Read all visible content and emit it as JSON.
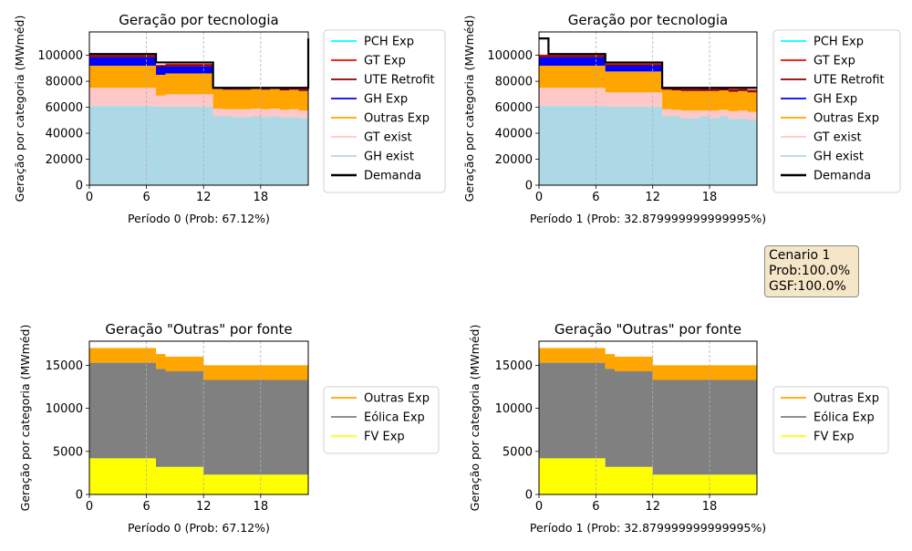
{
  "scenario_box": {
    "name": "Cenario 1",
    "prob": "Prob:100.0%",
    "gsf": "GSF:100.0%"
  },
  "chart_data": [
    {
      "type": "area",
      "title": "Geração por tecnologia",
      "xlabel": "Período 0 (Prob: 67.12%)",
      "ylabel": "Geração por categoria (MWméd)",
      "xlim": [
        0,
        23
      ],
      "ylim": [
        0,
        118000
      ],
      "xticks": [
        0,
        6,
        12,
        18
      ],
      "yticks": [
        0,
        20000,
        40000,
        60000,
        80000,
        100000
      ],
      "grid": "x-dashed",
      "legend_placement": "outside-right",
      "x": [
        0,
        1,
        2,
        3,
        4,
        5,
        6,
        7,
        8,
        9,
        10,
        11,
        12,
        13,
        14,
        15,
        16,
        17,
        18,
        19,
        20,
        21,
        22,
        23
      ],
      "series": [
        {
          "name": "GH exist",
          "color": "#add8e6",
          "values": [
            61000,
            61000,
            61000,
            61000,
            61000,
            61000,
            61000,
            60500,
            60500,
            60500,
            60500,
            60500,
            60500,
            53000,
            53000,
            52500,
            52500,
            53000,
            52500,
            53000,
            52000,
            52500,
            51500,
            51500
          ]
        },
        {
          "name": "GT exist",
          "color": "#ffc8c8",
          "values": [
            14000,
            14000,
            14000,
            14000,
            14000,
            14000,
            14000,
            8500,
            9500,
            9500,
            9500,
            9500,
            9500,
            6000,
            5500,
            6000,
            6000,
            6000,
            6000,
            6000,
            6000,
            6000,
            6000,
            6000
          ]
        },
        {
          "name": "Outras Exp",
          "color": "#ffa500",
          "values": [
            17000,
            17000,
            17000,
            17000,
            17000,
            17000,
            17000,
            16000,
            16000,
            16000,
            16000,
            16000,
            16000,
            15000,
            15000,
            15000,
            15000,
            15000,
            15000,
            15000,
            15000,
            15000,
            15000,
            15000
          ]
        },
        {
          "name": "GH Exp",
          "color": "#0000ff",
          "values": [
            6500,
            6500,
            6500,
            6500,
            6500,
            6500,
            6500,
            6000,
            5500,
            5500,
            5500,
            5500,
            5500,
            0,
            0,
            0,
            0,
            0,
            0,
            0,
            0,
            0,
            0,
            0
          ]
        },
        {
          "name": "UTE Retrofit",
          "color": "#8b0000",
          "values": [
            1500,
            1500,
            1500,
            1500,
            1500,
            1500,
            1500,
            1200,
            1500,
            1500,
            1500,
            1500,
            1500,
            600,
            1000,
            700,
            800,
            600,
            800,
            700,
            1200,
            800,
            1500,
            1500
          ]
        },
        {
          "name": "GT Exp",
          "color": "#ff0000",
          "values": [
            500,
            500,
            500,
            500,
            500,
            500,
            500,
            500,
            500,
            500,
            500,
            500,
            500,
            500,
            500,
            500,
            500,
            500,
            500,
            500,
            500,
            500,
            500,
            500
          ]
        },
        {
          "name": "PCH Exp",
          "color": "#00ffff",
          "values": [
            0,
            0,
            0,
            0,
            0,
            0,
            0,
            0,
            0,
            0,
            0,
            0,
            0,
            0,
            0,
            0,
            0,
            0,
            0,
            0,
            0,
            0,
            0,
            0
          ]
        }
      ],
      "demand": {
        "name": "Demanda",
        "color": "#000000",
        "values": [
          101000,
          101000,
          101000,
          101000,
          101000,
          101000,
          101000,
          94500,
          94500,
          94500,
          94500,
          94500,
          94500,
          75000,
          75000,
          75000,
          75000,
          75000,
          75000,
          75000,
          75000,
          75000,
          75000,
          113000
        ]
      }
    },
    {
      "type": "area",
      "title": "Geração por tecnologia",
      "xlabel": "Período 1 (Prob: 32.879999999999995%)",
      "ylabel": "Geração por categoria (MWméd)",
      "xlim": [
        0,
        23
      ],
      "ylim": [
        0,
        118000
      ],
      "xticks": [
        0,
        6,
        12,
        18
      ],
      "yticks": [
        0,
        20000,
        40000,
        60000,
        80000,
        100000
      ],
      "grid": "x-dashed",
      "legend_placement": "outside-right",
      "x": [
        0,
        1,
        2,
        3,
        4,
        5,
        6,
        7,
        8,
        9,
        10,
        11,
        12,
        13,
        14,
        15,
        16,
        17,
        18,
        19,
        20,
        21,
        22,
        23
      ],
      "series": [
        {
          "name": "GH exist",
          "color": "#add8e6",
          "values": [
            61000,
            61000,
            61000,
            61000,
            61000,
            61000,
            61000,
            60500,
            60500,
            60500,
            60500,
            60500,
            60500,
            53000,
            53000,
            51500,
            51500,
            53000,
            51500,
            53000,
            51000,
            51500,
            50500,
            50500
          ]
        },
        {
          "name": "GT exist",
          "color": "#ffc8c8",
          "values": [
            14000,
            14000,
            14000,
            14000,
            14000,
            14000,
            14000,
            11000,
            11000,
            11000,
            11000,
            11000,
            11000,
            5500,
            5000,
            6000,
            6000,
            4500,
            6000,
            5000,
            6000,
            6000,
            6000,
            6000
          ]
        },
        {
          "name": "Outras Exp",
          "color": "#ffa500",
          "values": [
            17000,
            17000,
            17000,
            17000,
            17000,
            17000,
            17000,
            16000,
            16000,
            16000,
            16000,
            16000,
            16000,
            15000,
            15000,
            15000,
            15000,
            15000,
            15000,
            15000,
            15000,
            15000,
            15000,
            15000
          ]
        },
        {
          "name": "GH Exp",
          "color": "#0000ff",
          "values": [
            6500,
            6500,
            6500,
            6500,
            6500,
            6500,
            6500,
            4500,
            4500,
            4500,
            4500,
            4500,
            4500,
            0,
            0,
            0,
            0,
            0,
            0,
            0,
            0,
            0,
            0,
            0
          ]
        },
        {
          "name": "UTE Retrofit",
          "color": "#8b0000",
          "values": [
            1500,
            1500,
            1500,
            1500,
            1500,
            1500,
            1500,
            1200,
            1200,
            1200,
            1200,
            1200,
            1200,
            700,
            1400,
            1500,
            1500,
            1800,
            1500,
            1400,
            1500,
            1400,
            1500,
            1500
          ]
        },
        {
          "name": "GT Exp",
          "color": "#ff0000",
          "values": [
            500,
            500,
            500,
            500,
            500,
            500,
            500,
            500,
            500,
            500,
            500,
            500,
            500,
            500,
            500,
            500,
            500,
            500,
            500,
            500,
            500,
            500,
            500,
            500
          ]
        },
        {
          "name": "PCH Exp",
          "color": "#00ffff",
          "values": [
            0,
            0,
            0,
            0,
            0,
            0,
            0,
            0,
            0,
            0,
            0,
            0,
            0,
            0,
            0,
            0,
            0,
            0,
            0,
            0,
            0,
            0,
            0,
            0
          ]
        }
      ],
      "demand": {
        "name": "Demanda",
        "color": "#000000",
        "values": [
          113000,
          101000,
          101000,
          101000,
          101000,
          101000,
          101000,
          94500,
          94500,
          94500,
          94500,
          94500,
          94500,
          75000,
          75000,
          75000,
          75000,
          75000,
          75000,
          75000,
          75000,
          75000,
          75000,
          75000
        ]
      }
    },
    {
      "type": "area",
      "title": "Geração \"Outras\" por fonte",
      "xlabel": "Período 0 (Prob: 67.12%)",
      "ylabel": "Geração por categoria (MWméd)",
      "xlim": [
        0,
        23
      ],
      "ylim": [
        0,
        17800
      ],
      "xticks": [
        0,
        6,
        12,
        18
      ],
      "yticks": [
        0,
        5000,
        10000,
        15000
      ],
      "grid": "x-dashed",
      "legend_placement": "outside-right",
      "x": [
        0,
        1,
        2,
        3,
        4,
        5,
        6,
        7,
        8,
        9,
        10,
        11,
        12,
        13,
        14,
        15,
        16,
        17,
        18,
        19,
        20,
        21,
        22,
        23
      ],
      "series": [
        {
          "name": "FV Exp",
          "color": "#ffff00",
          "values": [
            4200,
            4200,
            4200,
            4200,
            4200,
            4200,
            4200,
            3200,
            3200,
            3200,
            3200,
            3200,
            2300,
            2300,
            2300,
            2300,
            2300,
            2300,
            2300,
            2300,
            2300,
            2300,
            2300,
            2300
          ]
        },
        {
          "name": "Eólica Exp",
          "color": "#808080",
          "values": [
            11100,
            11100,
            11100,
            11100,
            11100,
            11100,
            11100,
            11400,
            11100,
            11100,
            11100,
            11100,
            11000,
            11000,
            11000,
            11000,
            11000,
            11000,
            11000,
            11000,
            11000,
            11000,
            11000,
            11000
          ]
        },
        {
          "name": "Outras Exp",
          "color": "#ffa500",
          "values": [
            1700,
            1700,
            1700,
            1700,
            1700,
            1700,
            1700,
            1700,
            1700,
            1700,
            1700,
            1700,
            1700,
            1700,
            1700,
            1700,
            1700,
            1700,
            1700,
            1700,
            1700,
            1700,
            1700,
            1700
          ]
        }
      ]
    },
    {
      "type": "area",
      "title": "Geração \"Outras\" por fonte",
      "xlabel": "Período 1 (Prob: 32.879999999999995%)",
      "ylabel": "Geração por categoria (MWméd)",
      "xlim": [
        0,
        23
      ],
      "ylim": [
        0,
        17800
      ],
      "xticks": [
        0,
        6,
        12,
        18
      ],
      "yticks": [
        0,
        5000,
        10000,
        15000
      ],
      "grid": "x-dashed",
      "legend_placement": "outside-right",
      "x": [
        0,
        1,
        2,
        3,
        4,
        5,
        6,
        7,
        8,
        9,
        10,
        11,
        12,
        13,
        14,
        15,
        16,
        17,
        18,
        19,
        20,
        21,
        22,
        23
      ],
      "series": [
        {
          "name": "FV Exp",
          "color": "#ffff00",
          "values": [
            4200,
            4200,
            4200,
            4200,
            4200,
            4200,
            4200,
            3200,
            3200,
            3200,
            3200,
            3200,
            2300,
            2300,
            2300,
            2300,
            2300,
            2300,
            2300,
            2300,
            2300,
            2300,
            2300,
            2300
          ]
        },
        {
          "name": "Eólica Exp",
          "color": "#808080",
          "values": [
            11100,
            11100,
            11100,
            11100,
            11100,
            11100,
            11100,
            11400,
            11100,
            11100,
            11100,
            11100,
            11000,
            11000,
            11000,
            11000,
            11000,
            11000,
            11000,
            11000,
            11000,
            11000,
            11000,
            11000
          ]
        },
        {
          "name": "Outras Exp",
          "color": "#ffa500",
          "values": [
            1700,
            1700,
            1700,
            1700,
            1700,
            1700,
            1700,
            1700,
            1700,
            1700,
            1700,
            1700,
            1700,
            1700,
            1700,
            1700,
            1700,
            1700,
            1700,
            1700,
            1700,
            1700,
            1700,
            1700
          ]
        }
      ]
    }
  ]
}
